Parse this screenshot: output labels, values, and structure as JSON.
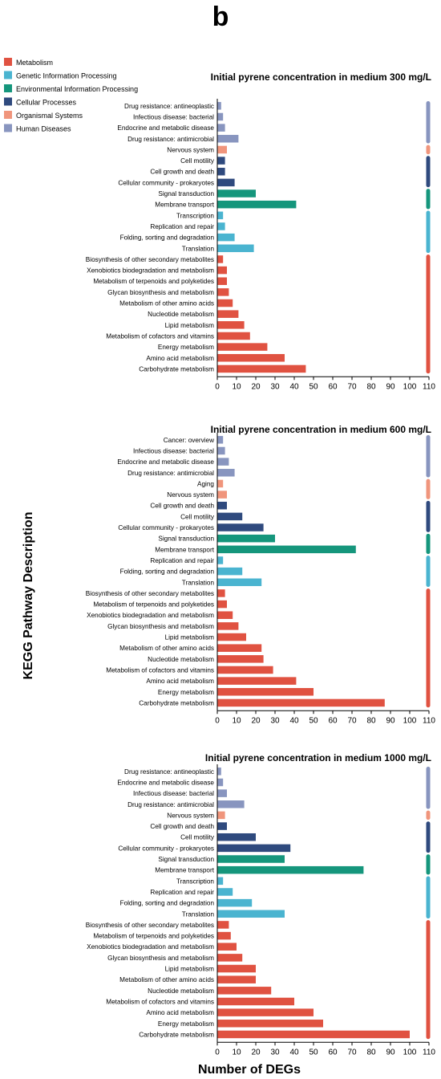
{
  "panel_label": "b",
  "y_axis_title": "KEGG Pathway Description",
  "x_axis_title": "Number of DEGs",
  "legend": [
    {
      "name": "Metabolism",
      "color": "#e05241"
    },
    {
      "name": "Genetic Information Processing",
      "color": "#4ab4d0"
    },
    {
      "name": "Environmental Information Processing",
      "color": "#15967c"
    },
    {
      "name": "Cellular Processes",
      "color": "#2f4a7e"
    },
    {
      "name": "Organismal Systems",
      "color": "#f0957c"
    },
    {
      "name": "Human Diseases",
      "color": "#8895bf"
    }
  ],
  "chart_data": [
    {
      "type": "bar",
      "orientation": "horizontal",
      "title": "Initial pyrene concentration in medium 300 mg/L",
      "xlim": [
        0,
        110
      ],
      "xticks": [
        0,
        10,
        20,
        30,
        40,
        50,
        60,
        70,
        80,
        90,
        100,
        110
      ],
      "categories": [
        "Drug resistance: antineoplastic",
        "Infectious disease: bacterial",
        "Endocrine and metabolic disease",
        "Drug resistance: antimicrobial",
        "Nervous system",
        "Cell motility",
        "Cell growth and death",
        "Cellular community - prokaryotes",
        "Signal transduction",
        "Membrane transport",
        "Transcription",
        "Replication and repair",
        "Folding, sorting and degradation",
        "Translation",
        "Biosynthesis of other secondary metabolites",
        "Xenobiotics biodegradation and metabolism",
        "Metabolism of terpenoids and polyketides",
        "Glycan biosynthesis and metabolism",
        "Metabolism of other amino acids",
        "Nucleotide metabolism",
        "Lipid metabolism",
        "Metabolism of cofactors and vitamins",
        "Energy metabolism",
        "Amino acid metabolism",
        "Carbohydrate metabolism"
      ],
      "values": [
        2,
        3,
        4,
        11,
        5,
        4,
        4,
        9,
        20,
        41,
        3,
        4,
        9,
        19,
        3,
        5,
        5,
        6,
        8,
        11,
        14,
        17,
        26,
        35,
        46
      ],
      "groups": [
        "Human Diseases",
        "Human Diseases",
        "Human Diseases",
        "Human Diseases",
        "Organismal Systems",
        "Cellular Processes",
        "Cellular Processes",
        "Cellular Processes",
        "Environmental Information Processing",
        "Environmental Information Processing",
        "Genetic Information Processing",
        "Genetic Information Processing",
        "Genetic Information Processing",
        "Genetic Information Processing",
        "Metabolism",
        "Metabolism",
        "Metabolism",
        "Metabolism",
        "Metabolism",
        "Metabolism",
        "Metabolism",
        "Metabolism",
        "Metabolism",
        "Metabolism",
        "Metabolism"
      ]
    },
    {
      "type": "bar",
      "orientation": "horizontal",
      "title": "Initial pyrene concentration in medium 600 mg/L",
      "xlim": [
        0,
        110
      ],
      "xticks": [
        0,
        10,
        20,
        30,
        40,
        50,
        60,
        70,
        80,
        90,
        100,
        110
      ],
      "categories": [
        "Cancer: overview",
        "Infectious disease: bacterial",
        "Endocrine and metabolic disease",
        "Drug resistance: antimicrobial",
        "Aging",
        "Nervous system",
        "Cell growth and death",
        "Cell motility",
        "Cellular community - prokaryotes",
        "Signal transduction",
        "Membrane transport",
        "Replication and repair",
        "Folding, sorting and degradation",
        "Translation",
        "Biosynthesis of other secondary metabolites",
        "Metabolism of terpenoids and polyketides",
        "Xenobiotics biodegradation and metabolism",
        "Glycan biosynthesis and metabolism",
        "Lipid metabolism",
        "Metabolism of other amino acids",
        "Nucleotide metabolism",
        "Metabolism of cofactors and vitamins",
        "Amino acid metabolism",
        "Energy metabolism",
        "Carbohydrate metabolism"
      ],
      "values": [
        3,
        4,
        6,
        9,
        3,
        5,
        5,
        13,
        24,
        30,
        72,
        3,
        13,
        23,
        4,
        5,
        8,
        11,
        15,
        23,
        24,
        29,
        41,
        50,
        87
      ],
      "groups": [
        "Human Diseases",
        "Human Diseases",
        "Human Diseases",
        "Human Diseases",
        "Organismal Systems",
        "Organismal Systems",
        "Cellular Processes",
        "Cellular Processes",
        "Cellular Processes",
        "Environmental Information Processing",
        "Environmental Information Processing",
        "Genetic Information Processing",
        "Genetic Information Processing",
        "Genetic Information Processing",
        "Metabolism",
        "Metabolism",
        "Metabolism",
        "Metabolism",
        "Metabolism",
        "Metabolism",
        "Metabolism",
        "Metabolism",
        "Metabolism",
        "Metabolism",
        "Metabolism"
      ]
    },
    {
      "type": "bar",
      "orientation": "horizontal",
      "title": "Initial pyrene concentration in medium 1000 mg/L",
      "xlim": [
        0,
        110
      ],
      "xticks": [
        0,
        10,
        20,
        30,
        40,
        50,
        60,
        70,
        80,
        90,
        100,
        110
      ],
      "categories": [
        "Drug resistance: antineoplastic",
        "Endocrine and metabolic disease",
        "Infectious disease: bacterial",
        "Drug resistance: antimicrobial",
        "Nervous system",
        "Cell growth and death",
        "Cell motility",
        "Cellular community - prokaryotes",
        "Signal transduction",
        "Membrane transport",
        "Transcription",
        "Replication and repair",
        "Folding, sorting and degradation",
        "Translation",
        "Biosynthesis of other secondary metabolites",
        "Metabolism of terpenoids and polyketides",
        "Xenobiotics biodegradation and metabolism",
        "Glycan biosynthesis and metabolism",
        "Lipid metabolism",
        "Metabolism of other amino acids",
        "Nucleotide metabolism",
        "Metabolism of cofactors and vitamins",
        "Amino acid metabolism",
        "Energy metabolism",
        "Carbohydrate metabolism"
      ],
      "values": [
        2,
        3,
        5,
        14,
        4,
        5,
        20,
        38,
        35,
        76,
        3,
        8,
        18,
        35,
        6,
        7,
        10,
        13,
        20,
        20,
        28,
        40,
        50,
        55,
        100
      ],
      "groups": [
        "Human Diseases",
        "Human Diseases",
        "Human Diseases",
        "Human Diseases",
        "Organismal Systems",
        "Cellular Processes",
        "Cellular Processes",
        "Cellular Processes",
        "Environmental Information Processing",
        "Environmental Information Processing",
        "Genetic Information Processing",
        "Genetic Information Processing",
        "Genetic Information Processing",
        "Genetic Information Processing",
        "Metabolism",
        "Metabolism",
        "Metabolism",
        "Metabolism",
        "Metabolism",
        "Metabolism",
        "Metabolism",
        "Metabolism",
        "Metabolism",
        "Metabolism",
        "Metabolism"
      ]
    }
  ]
}
